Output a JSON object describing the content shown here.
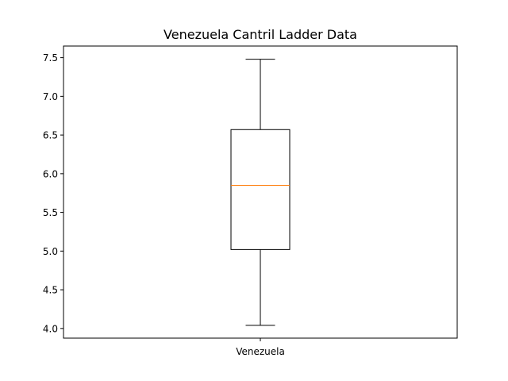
{
  "chart_data": {
    "type": "box",
    "title": "Venezuela Cantril Ladder Data",
    "xlabel": "",
    "ylabel": "",
    "categories": [
      "Venezuela"
    ],
    "boxes": [
      {
        "category": "Venezuela",
        "whisker_low": 4.04,
        "q1": 5.02,
        "median": 5.85,
        "q3": 6.57,
        "whisker_high": 7.48
      }
    ],
    "ylim": [
      3.875,
      7.65
    ],
    "yticks": [
      4.0,
      4.5,
      5.0,
      5.5,
      6.0,
      6.5,
      7.0,
      7.5
    ],
    "ytick_labels": [
      "4.0",
      "4.5",
      "5.0",
      "5.5",
      "6.0",
      "6.5",
      "7.0",
      "7.5"
    ],
    "grid": false,
    "colors": {
      "box": "#000000",
      "median": "#ff7f0e",
      "whisker": "#000000",
      "axes": "#000000"
    }
  }
}
